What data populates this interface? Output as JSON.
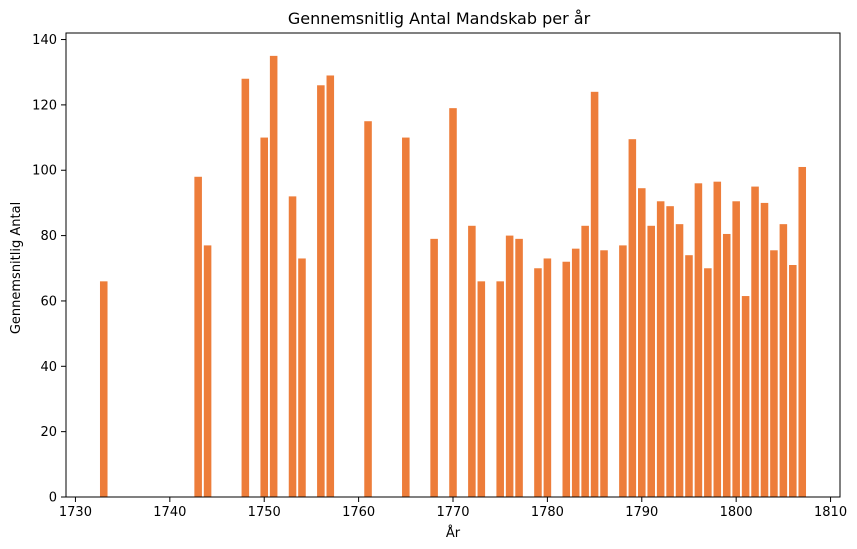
{
  "chart_data": {
    "type": "bar",
    "title": "Gennemsnitlig Antal Mandskab per år",
    "xlabel": "År",
    "ylabel": "Gennemsnitlig Antal",
    "xlim": [
      1729,
      1811
    ],
    "ylim": [
      0,
      142
    ],
    "xticks": [
      1730,
      1740,
      1750,
      1760,
      1770,
      1780,
      1790,
      1800,
      1810
    ],
    "yticks": [
      0,
      20,
      40,
      60,
      80,
      100,
      120,
      140
    ],
    "grid": false,
    "bar_color": "#ed7d3a",
    "x": [
      1733,
      1743,
      1744,
      1748,
      1750,
      1751,
      1753,
      1754,
      1756,
      1757,
      1761,
      1765,
      1768,
      1770,
      1772,
      1773,
      1775,
      1776,
      1777,
      1779,
      1780,
      1782,
      1783,
      1784,
      1785,
      1786,
      1788,
      1789,
      1790,
      1791,
      1792,
      1793,
      1794,
      1795,
      1796,
      1797,
      1798,
      1799,
      1800,
      1801,
      1802,
      1803,
      1804,
      1805,
      1806,
      1807
    ],
    "values": [
      66,
      98,
      77,
      128,
      110,
      135,
      92,
      73,
      126,
      129,
      115,
      110,
      79,
      119,
      83,
      66,
      66,
      80,
      79,
      70,
      73,
      72,
      76,
      83,
      124,
      75.5,
      77,
      109.5,
      94.5,
      83,
      90.5,
      89,
      83.5,
      74,
      96,
      70,
      96.5,
      80.5,
      90.5,
      61.5,
      95,
      90,
      75.5,
      83.5,
      71,
      101
    ]
  }
}
